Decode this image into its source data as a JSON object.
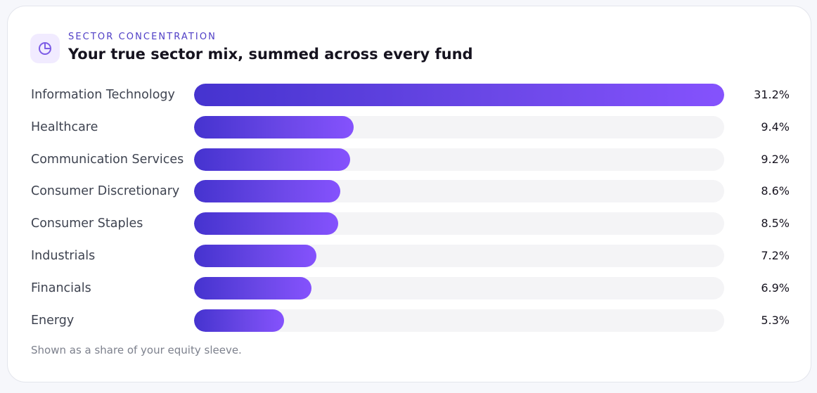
{
  "header": {
    "eyebrow": "SECTOR CONCENTRATION",
    "title": "Your true sector mix, summed across every fund",
    "icon": "pie-chart-icon"
  },
  "colors": {
    "accent": "#4f3ec6",
    "bar_start": "#4533cf",
    "bar_end": "#8552fd",
    "track": "#f4f4f6",
    "icon_bg": "#f1ebff"
  },
  "chart_data": {
    "type": "bar",
    "orientation": "horizontal",
    "categories": [
      "Information Technology",
      "Healthcare",
      "Communication Services",
      "Consumer Discretionary",
      "Consumer Staples",
      "Industrials",
      "Financials",
      "Energy"
    ],
    "values": [
      31.2,
      9.4,
      9.2,
      8.6,
      8.5,
      7.2,
      6.9,
      5.3
    ],
    "value_labels": [
      "31.2%",
      "9.4%",
      "9.2%",
      "8.6%",
      "8.5%",
      "7.2%",
      "6.9%",
      "5.3%"
    ],
    "xlim": [
      0,
      31.2
    ],
    "grid": false,
    "legend": "none"
  },
  "footnote": "Shown as a share of your equity sleeve."
}
